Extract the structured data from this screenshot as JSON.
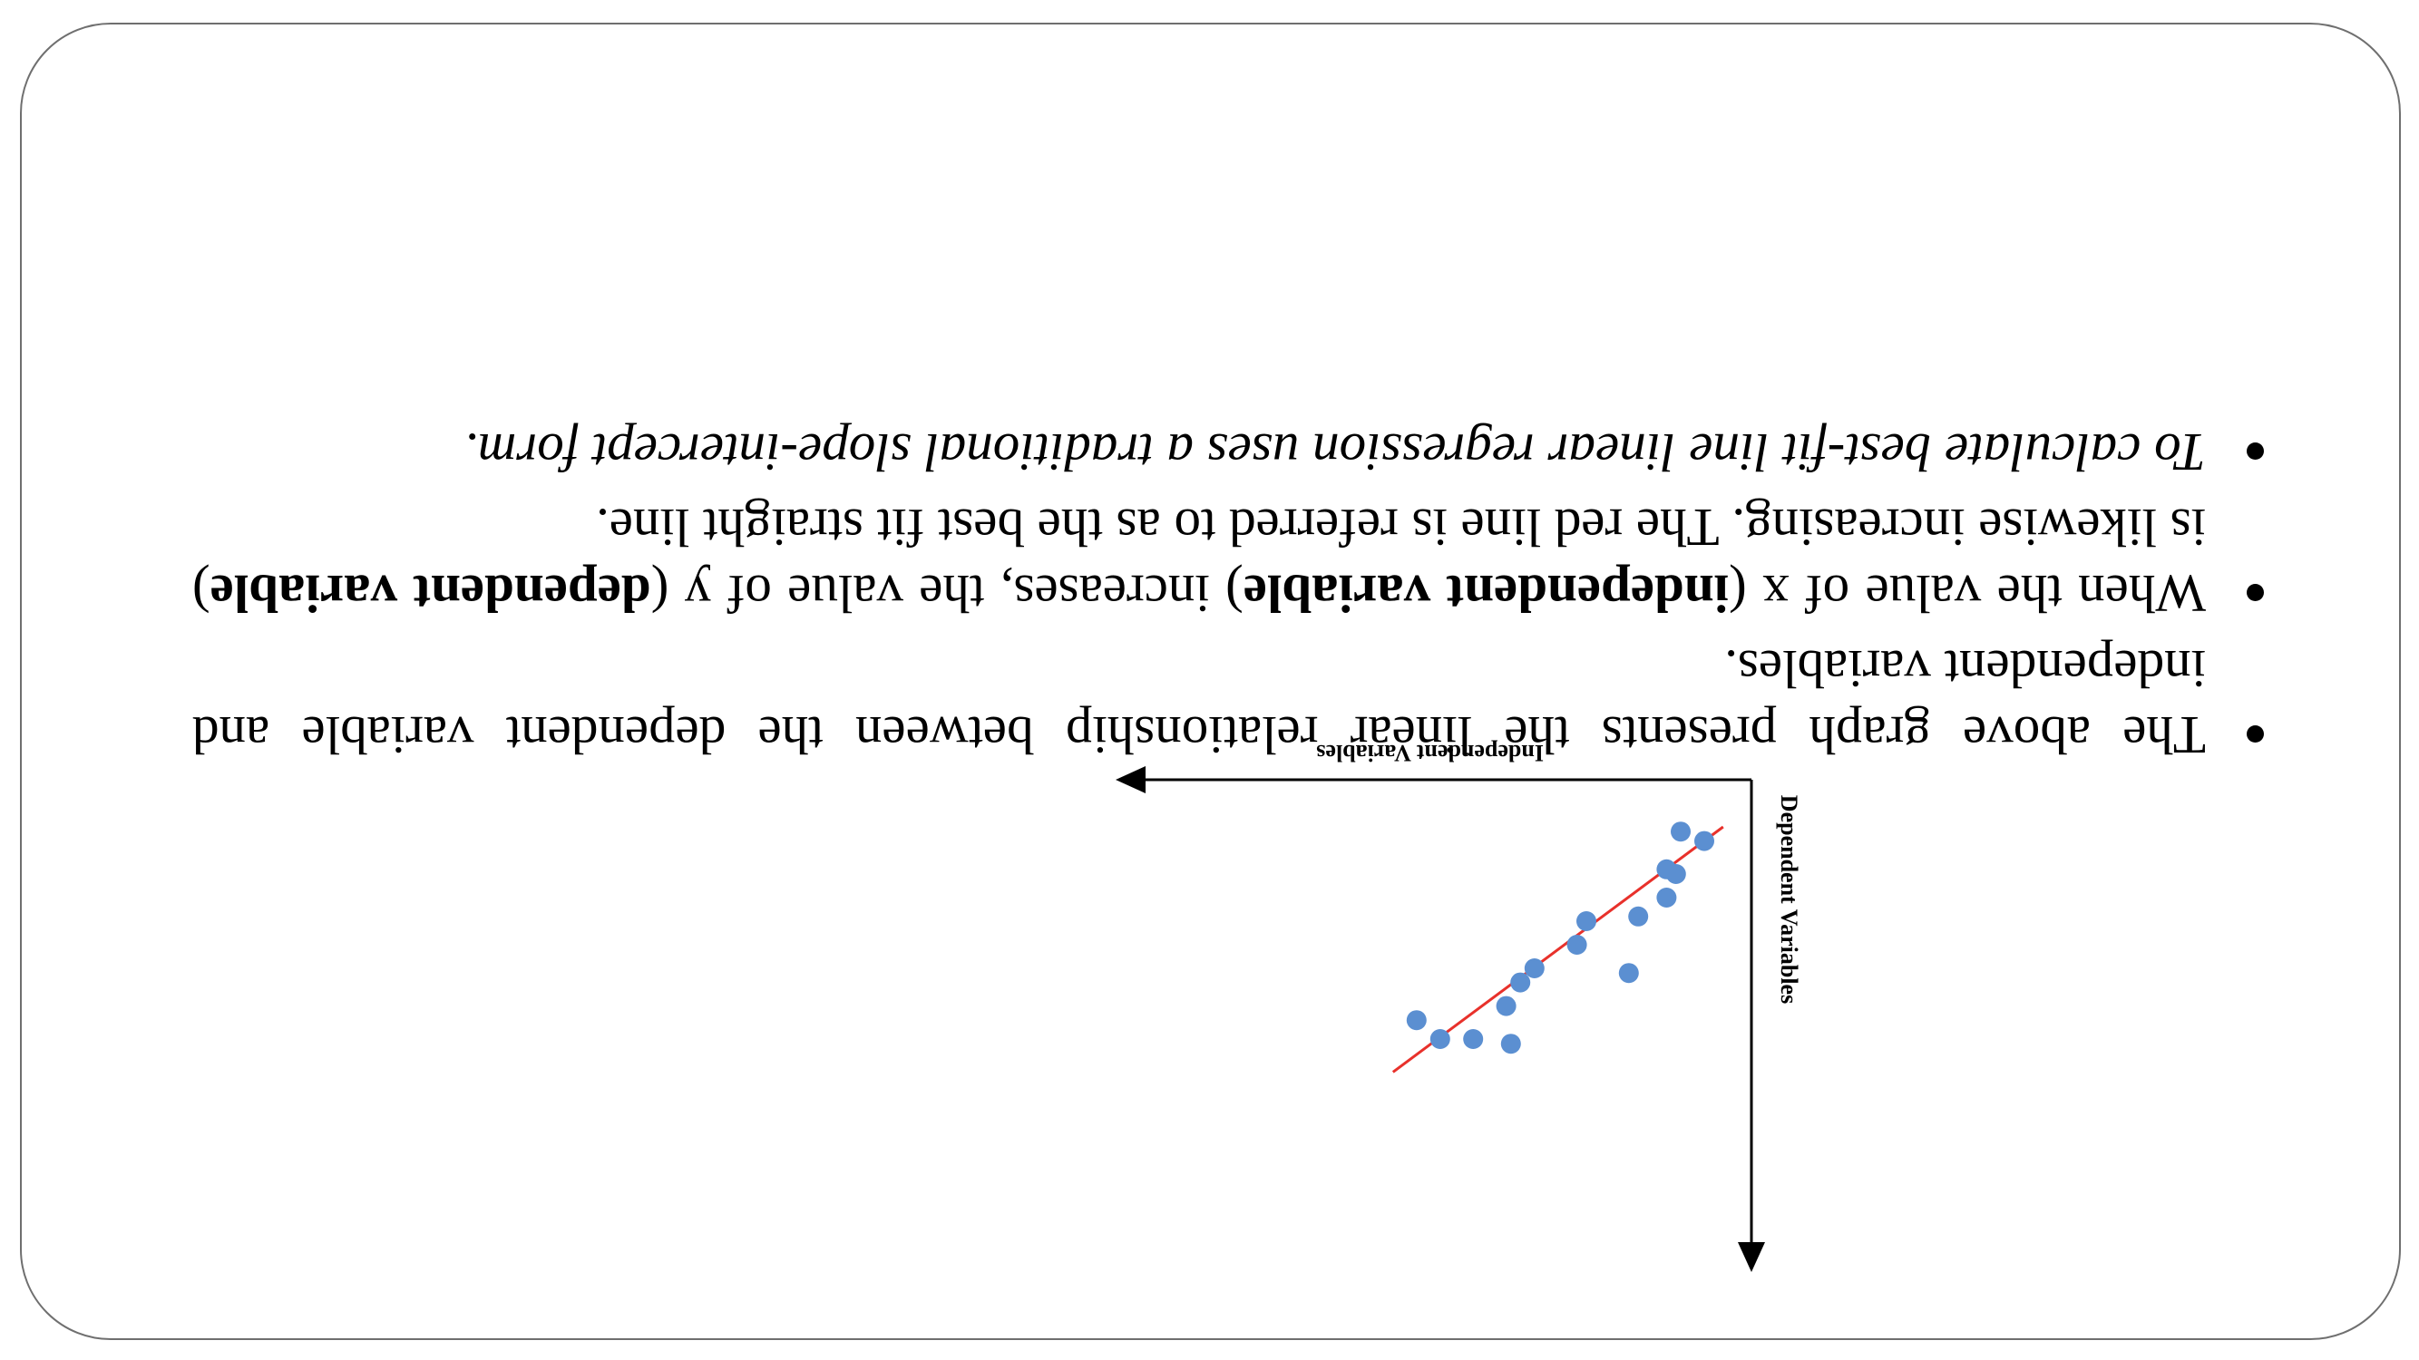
{
  "chart_data": {
    "type": "scatter",
    "xlabel": "Independent Variables",
    "ylabel": "Dependent Variables",
    "points": [
      [
        1,
        1.3
      ],
      [
        1.5,
        1.1
      ],
      [
        1.6,
        2.0
      ],
      [
        1.8,
        1.9
      ],
      [
        1.8,
        2.5
      ],
      [
        2.4,
        2.9
      ],
      [
        2.6,
        4.1
      ],
      [
        3.5,
        3.0
      ],
      [
        3.7,
        3.5
      ],
      [
        4.6,
        4.0
      ],
      [
        4.9,
        4.3
      ],
      [
        5.2,
        4.8
      ],
      [
        5.9,
        5.5
      ],
      [
        5.1,
        5.6
      ],
      [
        6.6,
        5.5
      ],
      [
        7.1,
        5.1
      ]
    ],
    "fit_line": {
      "color": "#e8312b",
      "x": [
        0.6,
        7.6
      ],
      "y": [
        1.0,
        6.2
      ]
    },
    "point_color": "#5b8fd1",
    "xlim": [
      0,
      10
    ],
    "ylim": [
      0,
      10
    ],
    "grid": false
  },
  "bullets": [
    {
      "segments": [
        {
          "text": "The above graph presents the linear relationship between the dependent variable and independent variables.",
          "style": "normal"
        }
      ]
    },
    {
      "segments": [
        {
          "text": "When the value of x (",
          "style": "normal"
        },
        {
          "text": "independent variable",
          "style": "bold"
        },
        {
          "text": ") increases, the value of y (",
          "style": "normal"
        },
        {
          "text": "dependent variable",
          "style": "bold"
        },
        {
          "text": ") is likewise increasing. The red line is referred to as the best fit straight line.",
          "style": "normal"
        }
      ]
    },
    {
      "segments": [
        {
          "text": "To calculate best-fit line linear regression uses a traditional slope-intercept form.",
          "style": "italic"
        }
      ]
    }
  ]
}
